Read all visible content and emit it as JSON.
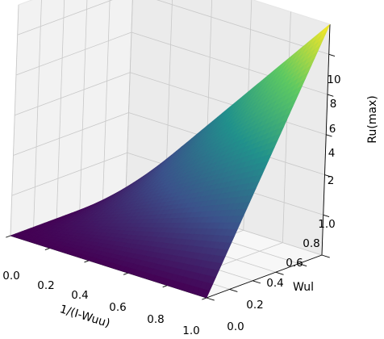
{
  "chart_data": {
    "type": "surface3d",
    "colormap": "viridis",
    "colormap_stops": [
      "#440154",
      "#3b528b",
      "#21918c",
      "#5ec962",
      "#fde725"
    ],
    "x_axis": {
      "label": "1/(I-Wuu)",
      "range": [
        0.0,
        1.0
      ],
      "ticks": [
        "0.0",
        "0.2",
        "0.4",
        "0.6",
        "0.8",
        "1.0"
      ]
    },
    "y_axis": {
      "label": "Wul",
      "range": [
        0.0,
        1.0
      ],
      "ticks": [
        "0.0",
        "0.2",
        "0.4",
        "0.6",
        "0.8",
        "1.0"
      ]
    },
    "z_axis": {
      "label": "Ru(max)",
      "range": [
        0.0,
        11.5
      ],
      "ticks": [
        "2",
        "4",
        "6",
        "8",
        "10"
      ]
    },
    "surface_corners": [
      {
        "x": 0.0,
        "y": 0.0,
        "z": 0.0
      },
      {
        "x": 1.0,
        "y": 0.0,
        "z": 0.0
      },
      {
        "x": 0.0,
        "y": 1.0,
        "z": 0.0
      },
      {
        "x": 1.0,
        "y": 1.0,
        "z": 11.5
      }
    ],
    "grid": true
  }
}
